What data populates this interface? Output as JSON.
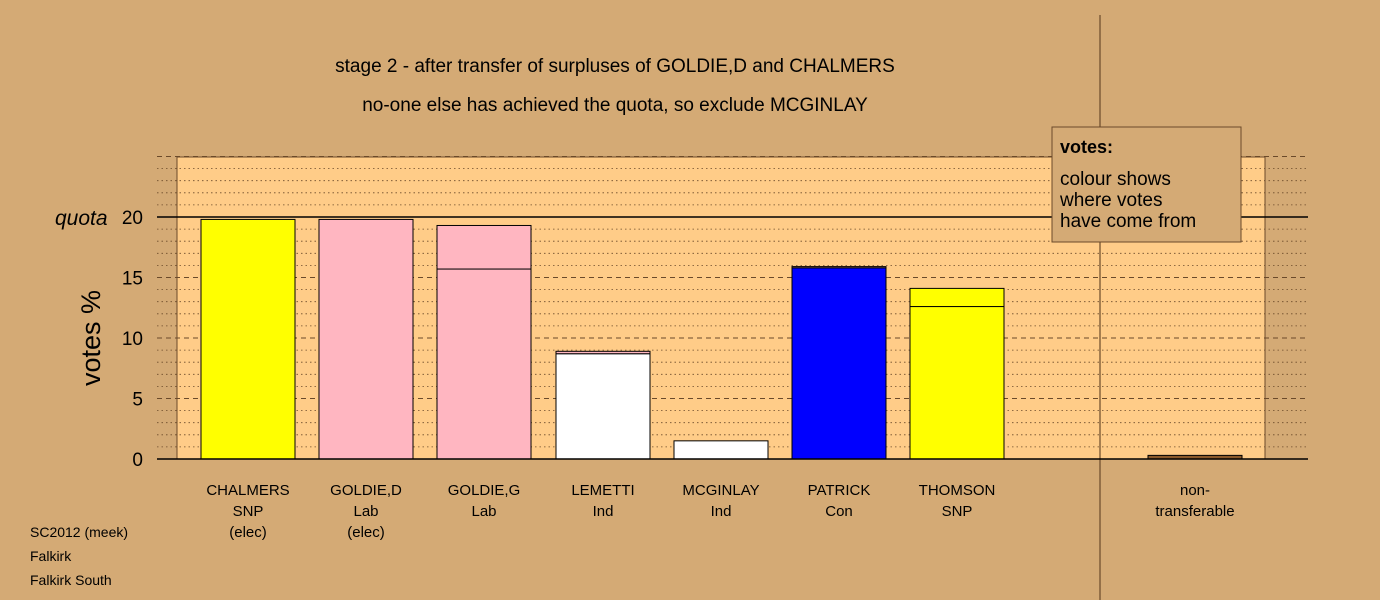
{
  "chart_data": {
    "type": "bar",
    "title": "stage 2 - after transfer of surpluses of GOLDIE,D and CHALMERS",
    "subtitle": "no-one else has achieved the quota, so exclude MCGINLAY",
    "ylabel": "votes %",
    "ylim": [
      0,
      25
    ],
    "yticks": [
      0,
      5,
      10,
      15,
      20
    ],
    "quota": {
      "label": "quota",
      "value": 20
    },
    "grid": "dashed at 5 % steps, dotted minor lines",
    "categories": [
      {
        "lines": [
          "CHALMERS",
          "SNP",
          "(elec)"
        ]
      },
      {
        "lines": [
          "GOLDIE,D",
          "Lab",
          "(elec)"
        ]
      },
      {
        "lines": [
          "GOLDIE,G",
          "Lab"
        ]
      },
      {
        "lines": [
          "LEMETTI",
          "Ind"
        ]
      },
      {
        "lines": [
          "MCGINLAY",
          "Ind"
        ]
      },
      {
        "lines": [
          "PATRICK",
          "Con"
        ]
      },
      {
        "lines": [
          "THOMSON",
          "SNP"
        ]
      },
      {
        "lines": [
          "non-",
          "transferable"
        ]
      }
    ],
    "bars": [
      {
        "segments": [
          {
            "value": 19.8,
            "color": "#ffff00"
          }
        ]
      },
      {
        "segments": [
          {
            "value": 19.8,
            "color": "#ffb6c1"
          }
        ]
      },
      {
        "segments": [
          {
            "value": 15.7,
            "color": "#ffb6c1"
          },
          {
            "value": 3.6,
            "color": "#ffb6c1"
          }
        ]
      },
      {
        "segments": [
          {
            "value": 8.7,
            "color": "#ffffff"
          },
          {
            "value": 0.2,
            "color": "#ffb6c1"
          }
        ]
      },
      {
        "segments": [
          {
            "value": 1.5,
            "color": "#ffffff"
          }
        ]
      },
      {
        "segments": [
          {
            "value": 15.8,
            "color": "#0000ff"
          },
          {
            "value": 0.1,
            "color": "#ffb6c1"
          }
        ]
      },
      {
        "segments": [
          {
            "value": 12.6,
            "color": "#ffff00"
          },
          {
            "value": 1.5,
            "color": "#ffff00"
          }
        ]
      },
      {
        "segments": [
          {
            "value": 0.3,
            "color": "#8b5a2b"
          }
        ]
      }
    ],
    "legend": {
      "title": "votes:",
      "lines": [
        "colour shows",
        "where votes",
        "have come from"
      ],
      "position": "top-right"
    },
    "colors": {
      "background": "#d4aa75",
      "plot_background": "#ffcc88"
    }
  },
  "footer": {
    "lines": [
      "SC2012 (meek)",
      "Falkirk",
      "Falkirk South"
    ]
  }
}
